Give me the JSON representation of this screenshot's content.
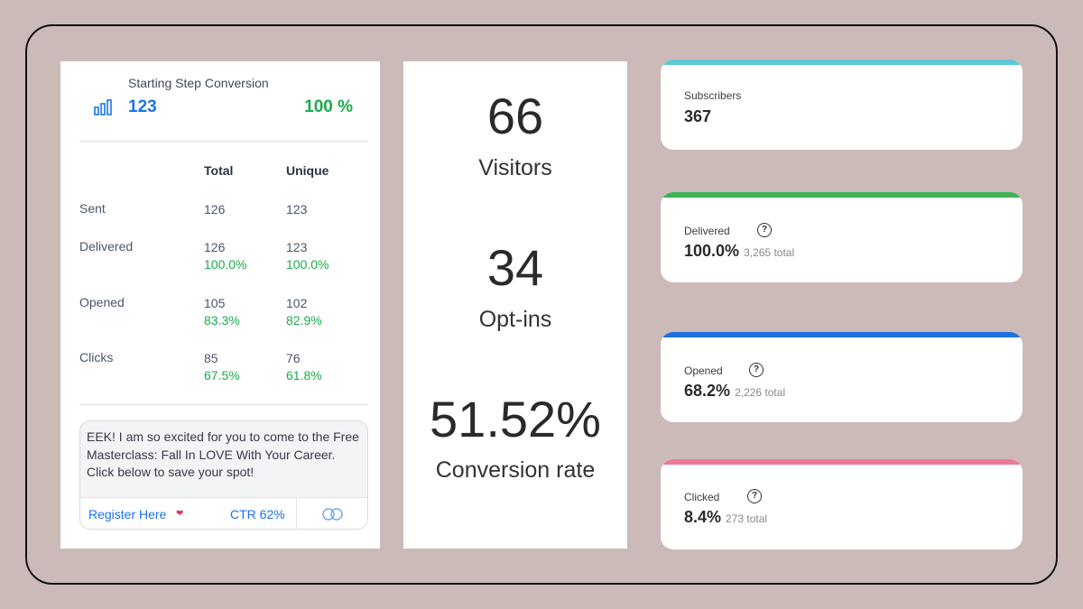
{
  "left_panel": {
    "title": "Starting Step Conversion",
    "icon": "bar-chart-icon",
    "count": "123",
    "percent": "100 %",
    "headers": {
      "total": "Total",
      "unique": "Unique"
    },
    "rows": [
      {
        "label": "Sent",
        "total": "126",
        "total_pct": "",
        "unique": "123",
        "unique_pct": ""
      },
      {
        "label": "Delivered",
        "total": "126",
        "total_pct": "100.0%",
        "unique": "123",
        "unique_pct": "100.0%"
      },
      {
        "label": "Opened",
        "total": "105",
        "total_pct": "83.3%",
        "unique": "102",
        "unique_pct": "82.9%"
      },
      {
        "label": "Clicks",
        "total": "85",
        "total_pct": "67.5%",
        "unique": "76",
        "unique_pct": "61.8%"
      }
    ],
    "message": "EEK! I am so excited for you to come to the Free Masterclass: Fall In LOVE With Your Career. Click below to save your spot!",
    "button_label": "Register Here",
    "button_icon": "heart-icon",
    "ctr": "CTR 62%",
    "link_icon": "link-icon"
  },
  "middle_panel": {
    "visitors_value": "66",
    "visitors_label": "Visitors",
    "optins_value": "34",
    "optins_label": "Opt-ins",
    "conversion_value": "51.52%",
    "conversion_label": "Conversion rate"
  },
  "cards": [
    {
      "title": "Subscribers",
      "value": "367",
      "sub": "",
      "color": "#5ecad6",
      "help": false
    },
    {
      "title": "Delivered",
      "value": "100.0%",
      "sub": "3,265 total",
      "color": "#3db356",
      "help": true
    },
    {
      "title": "Opened",
      "value": "68.2%",
      "sub": "2,226 total",
      "color": "#1f6fe0",
      "help": true
    },
    {
      "title": "Clicked",
      "value": "8.4%",
      "sub": "273 total",
      "color": "#ec7b9a",
      "help": true
    }
  ],
  "colors": {
    "background": "#cbbab8",
    "blue": "#1a73e8",
    "green": "#1aab4b"
  }
}
